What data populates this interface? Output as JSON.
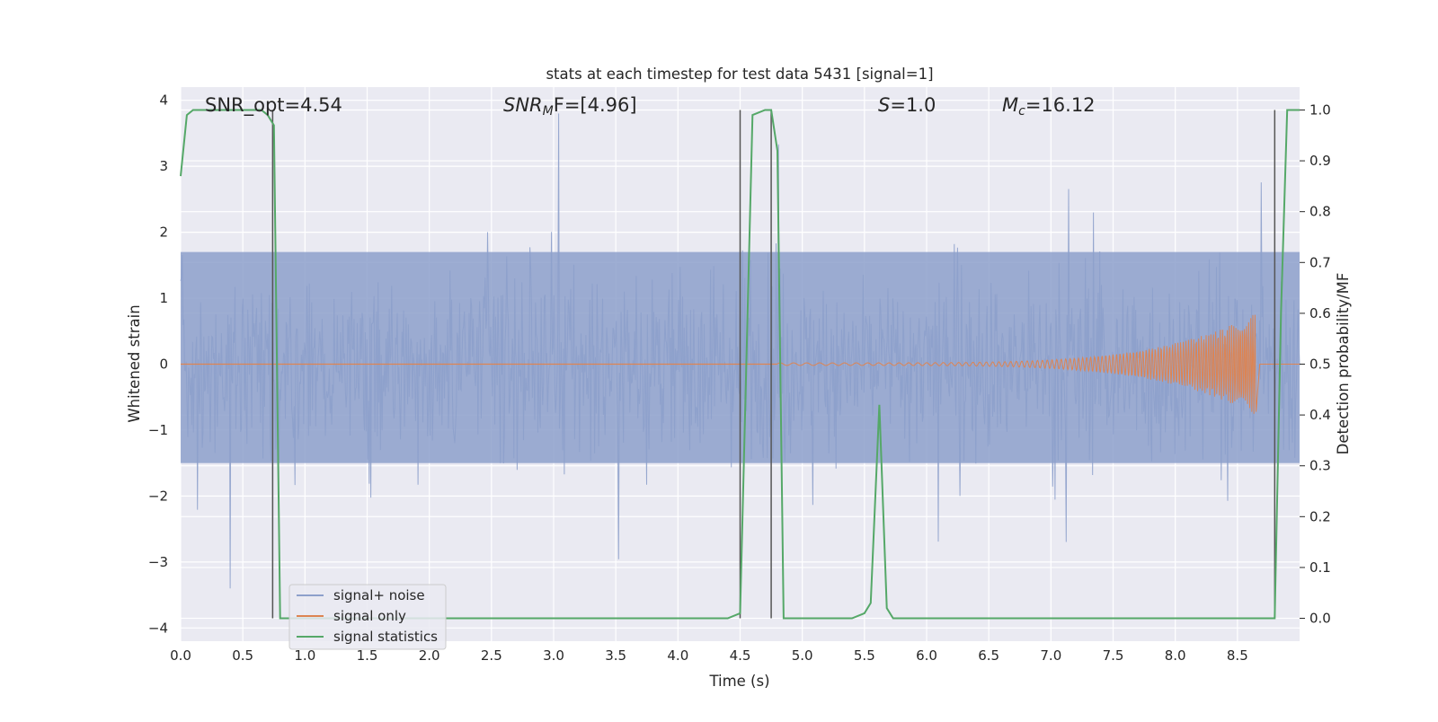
{
  "chart_data": {
    "type": "line",
    "title": "stats at each timestep for test data 5431 [signal=1]",
    "xlabel": "Time (s)",
    "ylabel": "Whitened strain",
    "y2label": "Detection probability/MF",
    "xlim": [
      0.0,
      9.0
    ],
    "ylim": [
      -4.2,
      4.2
    ],
    "y2lim": [
      -0.045,
      1.045
    ],
    "xticks": [
      "0.0",
      "0.5",
      "1.0",
      "1.5",
      "2.0",
      "2.5",
      "3.0",
      "3.5",
      "4.0",
      "4.5",
      "5.0",
      "5.5",
      "6.0",
      "6.5",
      "7.0",
      "7.5",
      "8.0",
      "8.5"
    ],
    "yticks": [
      "4",
      "3",
      "2",
      "1",
      "0",
      "−1",
      "−2",
      "−3",
      "−4"
    ],
    "y2ticks": [
      "1.0",
      "0.9",
      "0.8",
      "0.7",
      "0.6",
      "0.5",
      "0.4",
      "0.3",
      "0.2",
      "0.1",
      "0.0"
    ],
    "grid": true,
    "legend_position": "lower-left",
    "annotations": {
      "snr_opt": "SNR_opt=4.54",
      "snr_mf_prefix": "SNR",
      "snr_mf_sub": "M",
      "snr_mf_suffix": "F=[4.96]",
      "s_italic": "S",
      "s_value": "=1.0",
      "mc_italic": "M",
      "mc_sub": "c",
      "mc_value": "=16.12"
    },
    "series": [
      {
        "name": "signal+ noise",
        "color": "#8da0cb",
        "axis": "left",
        "description": "noise band approx within [-1.5, 1.7] with spikes up to ~4 and down to ~-3.4",
        "band": [
          -1.5,
          1.7
        ]
      },
      {
        "name": "signal only",
        "color": "#dd8452",
        "axis": "left",
        "chirp": {
          "start": 4.8,
          "peak_time": 8.65,
          "peak_amplitude": 0.75
        }
      },
      {
        "name": "signal statistics",
        "color": "#55a868",
        "axis": "right",
        "x": [
          0.0,
          0.05,
          0.1,
          0.15,
          0.25,
          0.45,
          0.65,
          0.7,
          0.75,
          0.8,
          0.85,
          1.0,
          2.0,
          3.0,
          4.0,
          4.4,
          4.5,
          4.55,
          4.6,
          4.7,
          4.75,
          4.8,
          4.85,
          4.9,
          5.0,
          5.4,
          5.5,
          5.55,
          5.62,
          5.68,
          5.73,
          5.8,
          6.0,
          7.0,
          8.0,
          8.75,
          8.8,
          8.85,
          8.9,
          8.95,
          9.0
        ],
        "y": [
          0.87,
          0.99,
          1.0,
          1.0,
          1.0,
          1.0,
          1.0,
          0.99,
          0.97,
          0.0,
          0.0,
          0.0,
          0.0,
          0.0,
          0.0,
          0.0,
          0.01,
          0.5,
          0.99,
          1.0,
          1.0,
          0.92,
          0.0,
          0.0,
          0.0,
          0.0,
          0.01,
          0.03,
          0.42,
          0.02,
          0.0,
          0.0,
          0.0,
          0.0,
          0.0,
          0.0,
          0.0,
          0.6,
          1.0,
          1.0,
          1.0
        ]
      }
    ],
    "vertical_markers": {
      "color": "#555555",
      "x": [
        0.74,
        4.5,
        4.75,
        8.8
      ]
    }
  }
}
